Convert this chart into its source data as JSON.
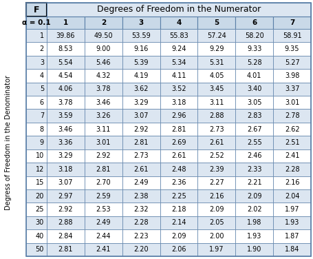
{
  "title": "Degrees of Freedom in the Numerator",
  "f_label": "F",
  "alpha_label": "α = ",
  "alpha_value": "0.1",
  "col_headers": [
    "1",
    "2",
    "3",
    "4",
    "5",
    "6",
    "7"
  ],
  "row_headers": [
    "1",
    "2",
    "3",
    "4",
    "5",
    "6",
    "7",
    "8",
    "9",
    "10",
    "12",
    "15",
    "20",
    "25",
    "30",
    "40",
    "50"
  ],
  "row_label": "Degress of Freedom in the Denominator",
  "table_data": [
    [
      39.86,
      49.5,
      53.59,
      55.83,
      57.24,
      58.2,
      58.91
    ],
    [
      8.53,
      9.0,
      9.16,
      9.24,
      9.29,
      9.33,
      9.35
    ],
    [
      5.54,
      5.46,
      5.39,
      5.34,
      5.31,
      5.28,
      5.27
    ],
    [
      4.54,
      4.32,
      4.19,
      4.11,
      4.05,
      4.01,
      3.98
    ],
    [
      4.06,
      3.78,
      3.62,
      3.52,
      3.45,
      3.4,
      3.37
    ],
    [
      3.78,
      3.46,
      3.29,
      3.18,
      3.11,
      3.05,
      3.01
    ],
    [
      3.59,
      3.26,
      3.07,
      2.96,
      2.88,
      2.83,
      2.78
    ],
    [
      3.46,
      3.11,
      2.92,
      2.81,
      2.73,
      2.67,
      2.62
    ],
    [
      3.36,
      3.01,
      2.81,
      2.69,
      2.61,
      2.55,
      2.51
    ],
    [
      3.29,
      2.92,
      2.73,
      2.61,
      2.52,
      2.46,
      2.41
    ],
    [
      3.18,
      2.81,
      2.61,
      2.48,
      2.39,
      2.33,
      2.28
    ],
    [
      3.07,
      2.7,
      2.49,
      2.36,
      2.27,
      2.21,
      2.16
    ],
    [
      2.97,
      2.59,
      2.38,
      2.25,
      2.16,
      2.09,
      2.04
    ],
    [
      2.92,
      2.53,
      2.32,
      2.18,
      2.09,
      2.02,
      1.97
    ],
    [
      2.88,
      2.49,
      2.28,
      2.14,
      2.05,
      1.98,
      1.93
    ],
    [
      2.84,
      2.44,
      2.23,
      2.09,
      2.0,
      1.93,
      1.87
    ],
    [
      2.81,
      2.41,
      2.2,
      2.06,
      1.97,
      1.9,
      1.84
    ]
  ],
  "bg_color": "#ffffff",
  "color_light": "#dce6f1",
  "color_mid": "#c9d9e8",
  "color_dark": "#5a7fa8",
  "text_color": "#000000",
  "f_box_bg": "#c9d9e8",
  "title_bg": "#dce6f1",
  "alpha_bg": "#c9d9e8",
  "font_size": 7.0,
  "header_font_size": 7.5,
  "title_font_size": 9.0
}
